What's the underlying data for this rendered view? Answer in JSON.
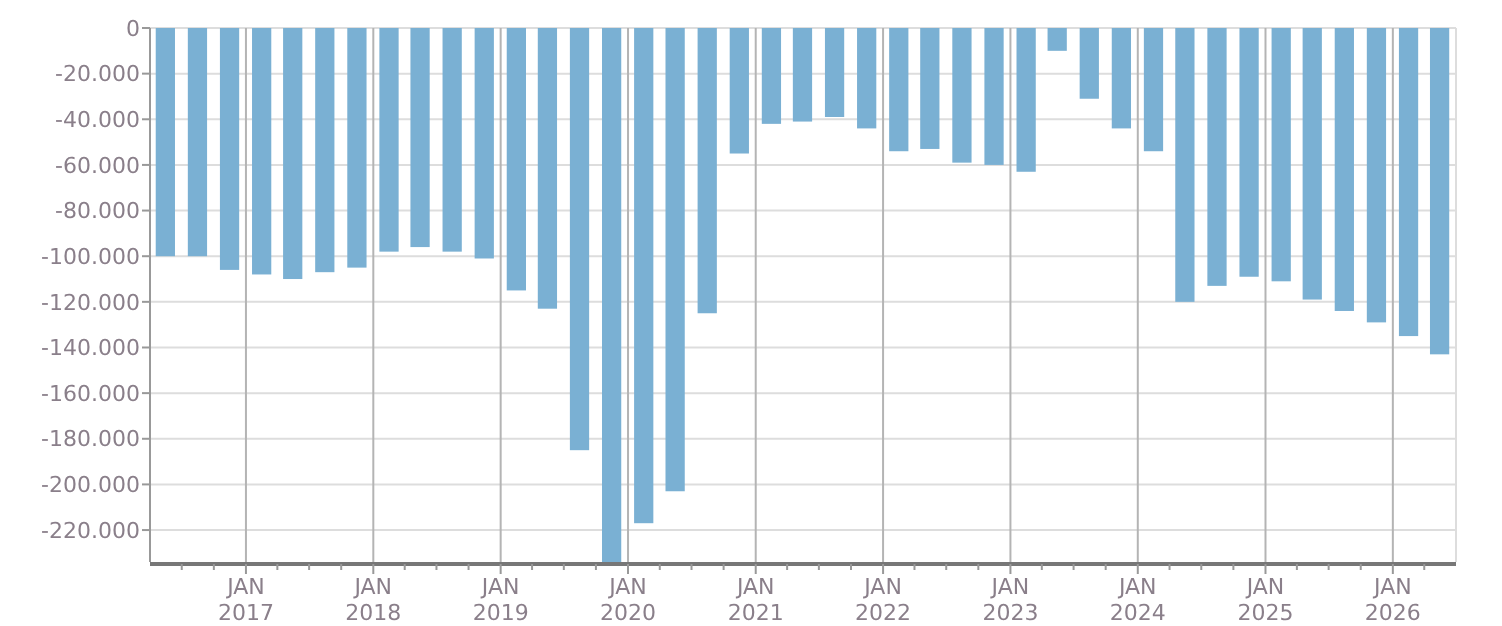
{
  "chart_data": {
    "type": "bar",
    "x": [
      "2016-05-15",
      "2016-08-15",
      "2016-11-15",
      "2017-02-15",
      "2017-05-15",
      "2017-08-15",
      "2017-11-15",
      "2018-02-15",
      "2018-05-15",
      "2018-08-15",
      "2018-11-15",
      "2019-02-15",
      "2019-05-15",
      "2019-08-15",
      "2019-11-15",
      "2020-02-15",
      "2020-05-15",
      "2020-08-15",
      "2020-11-15",
      "2021-02-15",
      "2021-05-15",
      "2021-08-15",
      "2021-11-15",
      "2022-02-15",
      "2022-05-15",
      "2022-08-15",
      "2022-11-15",
      "2023-02-15",
      "2023-05-15",
      "2023-08-15",
      "2023-11-15",
      "2024-02-15",
      "2024-05-15",
      "2024-08-15",
      "2024-11-15",
      "2025-02-15",
      "2025-05-15",
      "2025-08-15",
      "2025-11-15",
      "2026-02-15",
      "2026-05-15"
    ],
    "values": [
      -100000,
      -100000,
      -106000,
      -108000,
      -110000,
      -107000,
      -105000,
      -98000,
      -96000,
      -98000,
      -101000,
      -115000,
      -123000,
      -185000,
      -234000,
      -217000,
      -203000,
      -125000,
      -55000,
      -42000,
      -41000,
      -39000,
      -44000,
      -54000,
      -53000,
      -59000,
      -60000,
      -63000,
      -10000,
      -31000,
      -44000,
      -54000,
      -120000,
      -113000,
      -109000,
      -111000,
      -119000,
      -124000,
      -129000,
      -135000,
      -143000
    ],
    "color": "#7ab0d3",
    "xlim": [
      "2016-04-01",
      "2026-07-01"
    ],
    "xticks": [
      {
        "value": "2016-07-01",
        "label": null
      },
      {
        "value": "2016-10-01",
        "label": null
      },
      {
        "value": "2017-01-01",
        "label": "JAN 2017"
      },
      {
        "value": "2017-04-01",
        "label": null
      },
      {
        "value": "2017-07-01",
        "label": null
      },
      {
        "value": "2017-10-01",
        "label": null
      },
      {
        "value": "2018-01-01",
        "label": "JAN 2018"
      },
      {
        "value": "2018-04-01",
        "label": null
      },
      {
        "value": "2018-07-01",
        "label": null
      },
      {
        "value": "2018-10-01",
        "label": null
      },
      {
        "value": "2019-01-01",
        "label": "JAN 2019"
      },
      {
        "value": "2019-04-01",
        "label": null
      },
      {
        "value": "2019-07-01",
        "label": null
      },
      {
        "value": "2019-10-01",
        "label": null
      },
      {
        "value": "2020-01-01",
        "label": "JAN 2020"
      },
      {
        "value": "2020-04-01",
        "label": null
      },
      {
        "value": "2020-07-01",
        "label": null
      },
      {
        "value": "2020-10-01",
        "label": null
      },
      {
        "value": "2021-01-01",
        "label": "JAN 2021"
      },
      {
        "value": "2021-04-01",
        "label": null
      },
      {
        "value": "2021-07-01",
        "label": null
      },
      {
        "value": "2021-10-01",
        "label": null
      },
      {
        "value": "2022-01-01",
        "label": "JAN 2022"
      },
      {
        "value": "2022-04-01",
        "label": null
      },
      {
        "value": "2022-07-01",
        "label": null
      },
      {
        "value": "2022-10-01",
        "label": null
      },
      {
        "value": "2023-01-01",
        "label": "JAN 2023"
      },
      {
        "value": "2023-04-01",
        "label": null
      },
      {
        "value": "2023-07-01",
        "label": null
      },
      {
        "value": "2023-10-01",
        "label": null
      },
      {
        "value": "2024-01-01",
        "label": "JAN 2024"
      },
      {
        "value": "2024-04-01",
        "label": null
      },
      {
        "value": "2024-07-01",
        "label": null
      },
      {
        "value": "2024-10-01",
        "label": null
      },
      {
        "value": "2025-01-01",
        "label": "JAN 2025"
      },
      {
        "value": "2025-04-01",
        "label": null
      },
      {
        "value": "2025-07-01",
        "label": null
      },
      {
        "value": "2025-10-01",
        "label": null
      },
      {
        "value": "2026-01-01",
        "label": "JAN 2026"
      },
      {
        "value": "2026-04-01",
        "label": null
      }
    ],
    "ylim": [
      -234000,
      0
    ],
    "yticks": [
      {
        "value": 0,
        "label": "0"
      },
      {
        "value": -20000,
        "label": "-20.000"
      },
      {
        "value": -40000,
        "label": "-40.000"
      },
      {
        "value": -60000,
        "label": "-60.000"
      },
      {
        "value": -80000,
        "label": "-80.000"
      },
      {
        "value": -100000,
        "label": "-100.000"
      },
      {
        "value": -120000,
        "label": "-120.000"
      },
      {
        "value": -140000,
        "label": "-140.000"
      },
      {
        "value": -160000,
        "label": "-160.000"
      },
      {
        "value": -180000,
        "label": "-180.000"
      },
      {
        "value": -200000,
        "label": "-200.000"
      },
      {
        "value": -220000,
        "label": "-220.000"
      }
    ],
    "grid": true
  }
}
